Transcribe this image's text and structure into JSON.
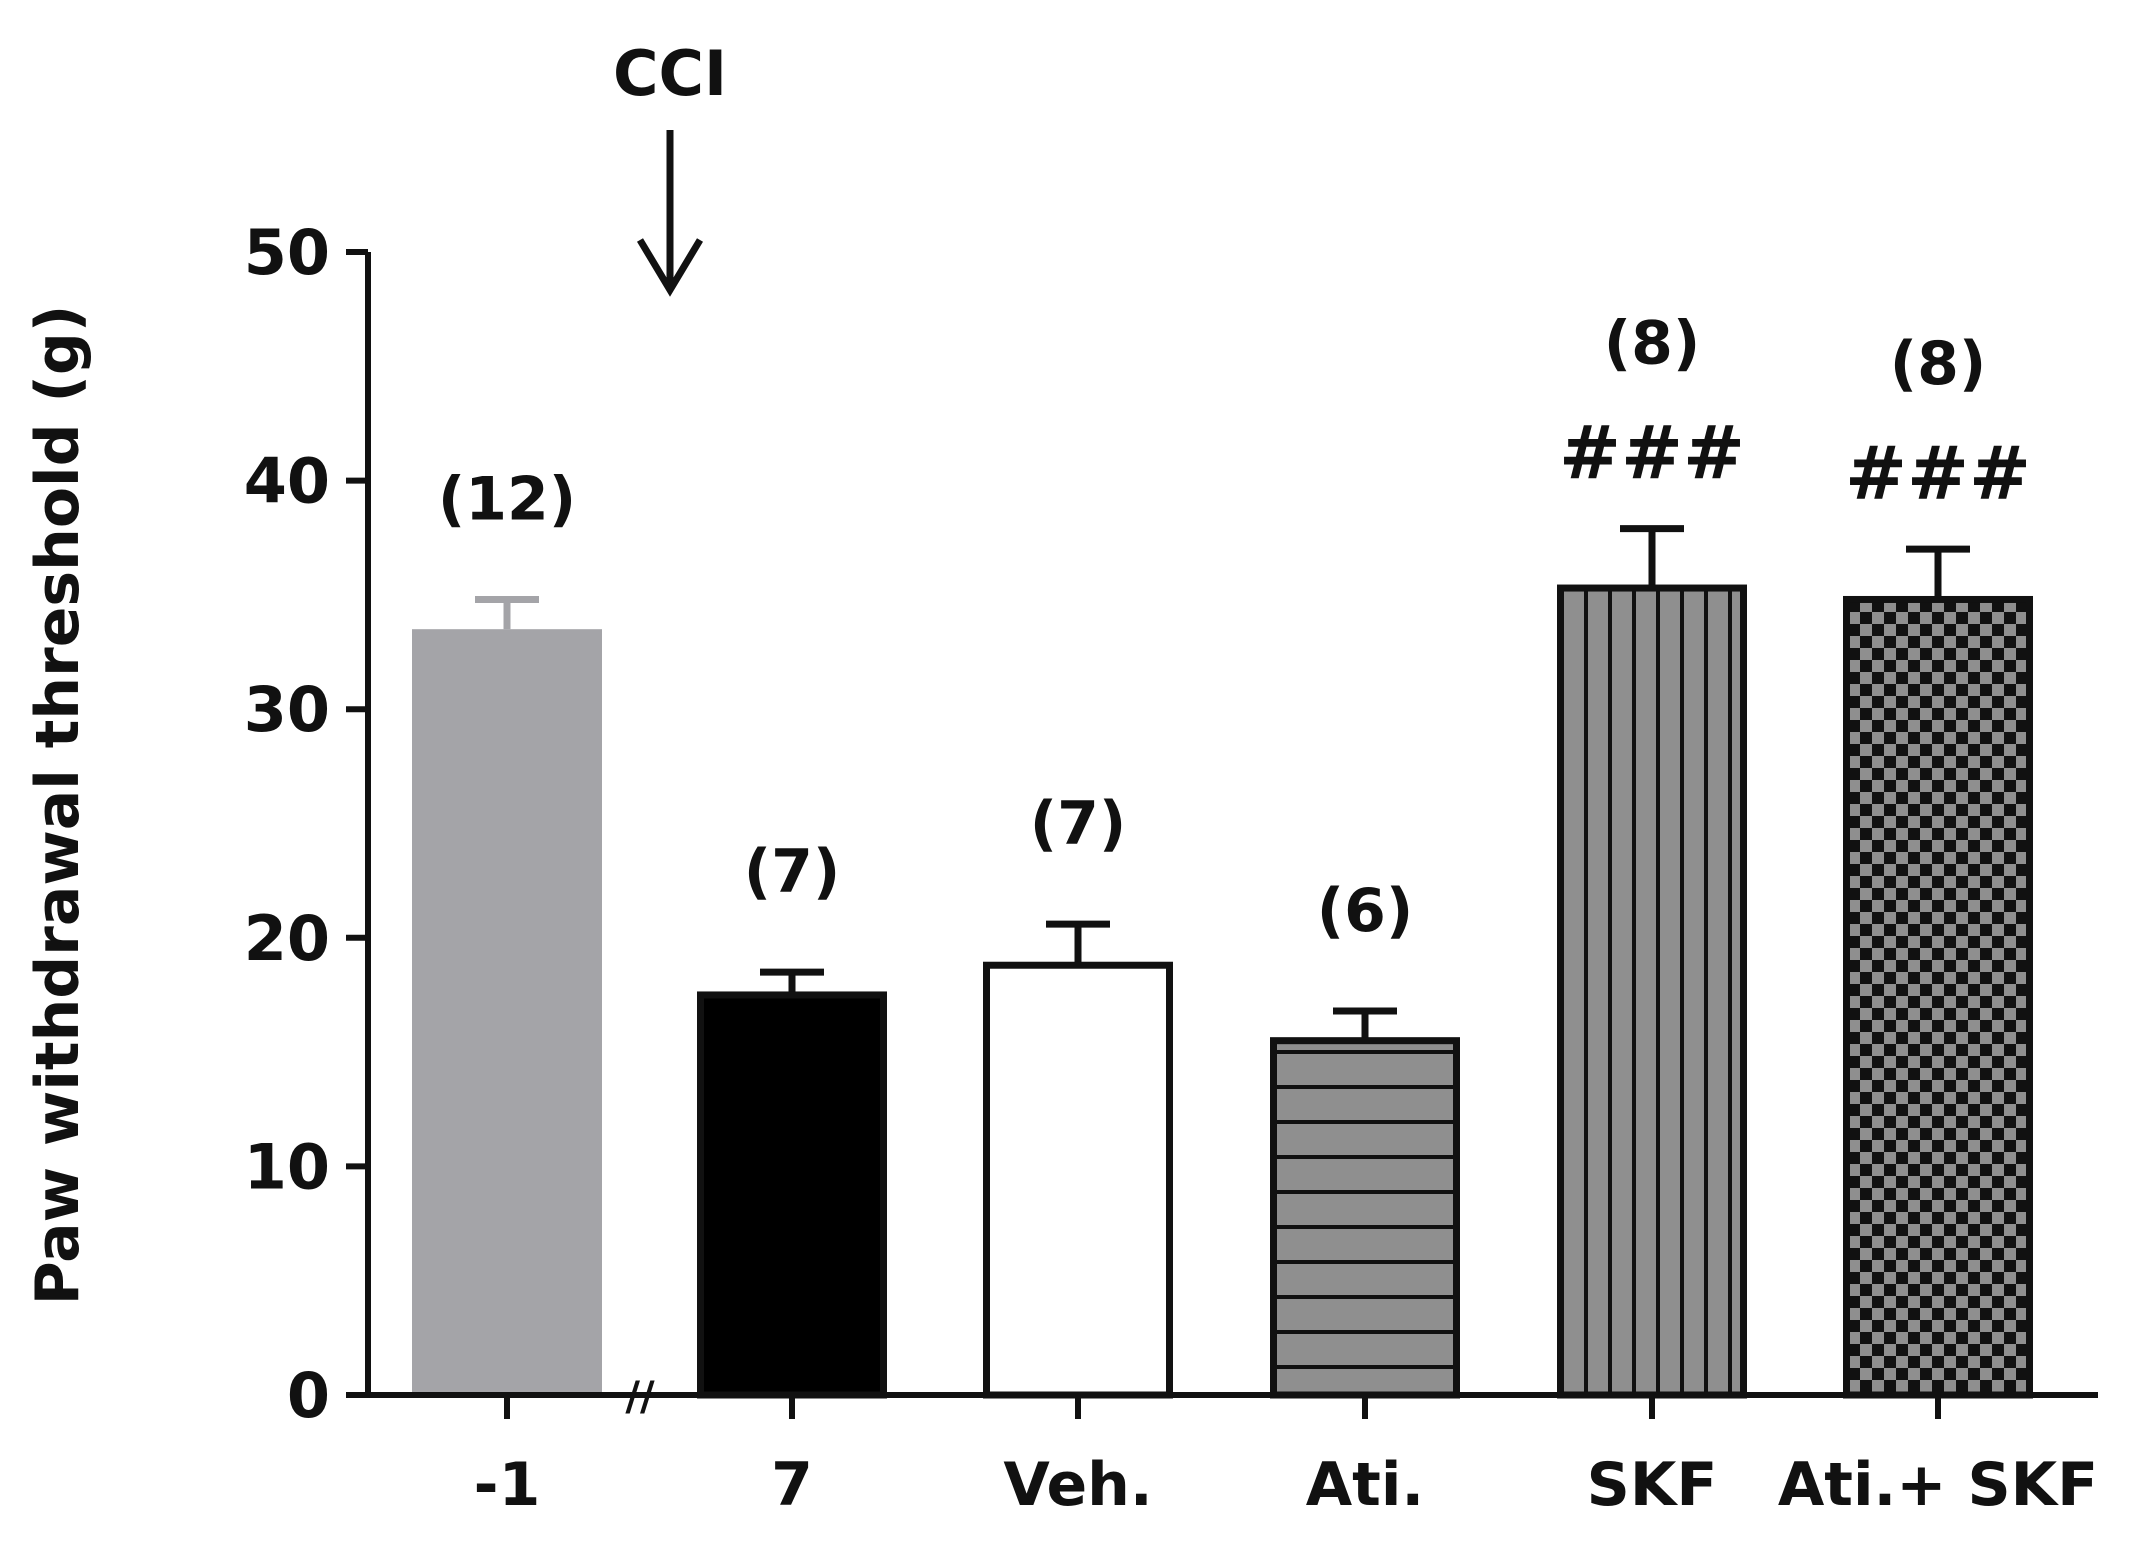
{
  "chart_data": {
    "type": "bar",
    "title": "",
    "xlabel": "",
    "ylabel": "Paw withdrawal threshold (g)",
    "ylim": [
      0,
      50
    ],
    "yticks": [
      "0",
      "10",
      "20",
      "30",
      "40",
      "50"
    ],
    "grid": false,
    "categories": [
      "-1",
      "7",
      "Veh.",
      "Ati.",
      "SKF",
      "Ati.+ SKF"
    ],
    "values": [
      33.5,
      17.5,
      18.8,
      15.5,
      35.3,
      34.8
    ],
    "errors": [
      1.3,
      1.0,
      1.8,
      1.3,
      2.6,
      2.2
    ],
    "n_labels": [
      "(12)",
      "(7)",
      "(7)",
      "(6)",
      "(8)",
      "(8)"
    ],
    "significance": [
      "",
      "",
      "",
      "",
      "###",
      "###"
    ],
    "annotation": {
      "text": "CCI",
      "arrow": "down-arrow"
    },
    "axis_break": "//",
    "colors": {
      "baseline": "#a4a4a8",
      "black": "#000000",
      "white": "#ffffff",
      "gray_fill": "#8f8f8f",
      "ink": "#111111"
    },
    "fills": [
      "solid-gray",
      "solid-black",
      "white",
      "horizontal-stripes",
      "vertical-stripes",
      "checkerboard"
    ]
  }
}
